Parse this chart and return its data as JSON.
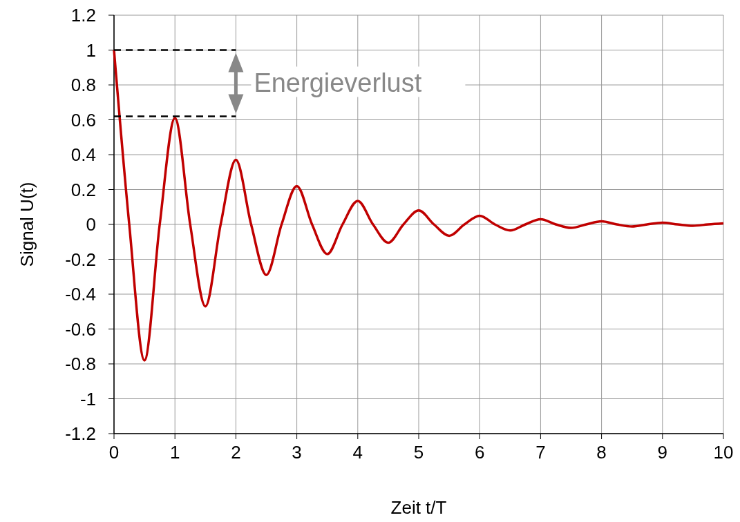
{
  "chart_data": {
    "type": "line",
    "xlabel": "Zeit t/T",
    "ylabel": "Signal U(t)",
    "x": [
      0,
      0.25,
      0.5,
      0.75,
      1,
      1.25,
      1.5,
      1.75,
      2,
      2.25,
      2.5,
      2.75,
      3,
      3.25,
      3.5,
      3.75,
      4,
      4.25,
      4.5,
      4.75,
      5,
      5.25,
      5.5,
      5.75,
      6,
      6.25,
      6.5,
      6.75,
      7,
      7.25,
      7.5,
      7.75,
      8,
      8.25,
      8.5,
      8.75,
      9,
      9.25,
      9.5,
      9.75,
      10
    ],
    "series": [
      {
        "color": "#c00000",
        "values": [
          1,
          0,
          -0.78,
          0,
          0.61,
          0,
          -0.47,
          0,
          0.37,
          0,
          -0.29,
          0,
          0.22,
          0,
          -0.17,
          0,
          0.135,
          0,
          -0.105,
          0,
          0.08,
          0,
          -0.065,
          0,
          0.05,
          0,
          -0.035,
          0,
          0.03,
          0,
          -0.02,
          0,
          0.018,
          0,
          -0.012,
          0,
          0.01,
          0,
          -0.008,
          0,
          0.006
        ]
      }
    ],
    "xlim": [
      0,
      10
    ],
    "xticks": [
      0,
      1,
      2,
      3,
      4,
      5,
      6,
      7,
      8,
      9,
      10
    ],
    "ylim": [
      -1.2,
      1.2
    ],
    "yticks": [
      -1.2,
      -1,
      -0.8,
      -0.6,
      -0.4,
      -0.2,
      0,
      0.2,
      0.4,
      0.6,
      0.8,
      1,
      1.2
    ],
    "grid": true,
    "marker": "none",
    "line_style": "solid",
    "ref_lines": [
      {
        "axis": "y",
        "value": 1,
        "color": "#000000",
        "line_style": "dashed"
      },
      {
        "axis": "y",
        "value": 0.62,
        "color": "#000000",
        "line_style": "dashed"
      }
    ],
    "annotations": [
      "Energieverlust"
    ]
  }
}
